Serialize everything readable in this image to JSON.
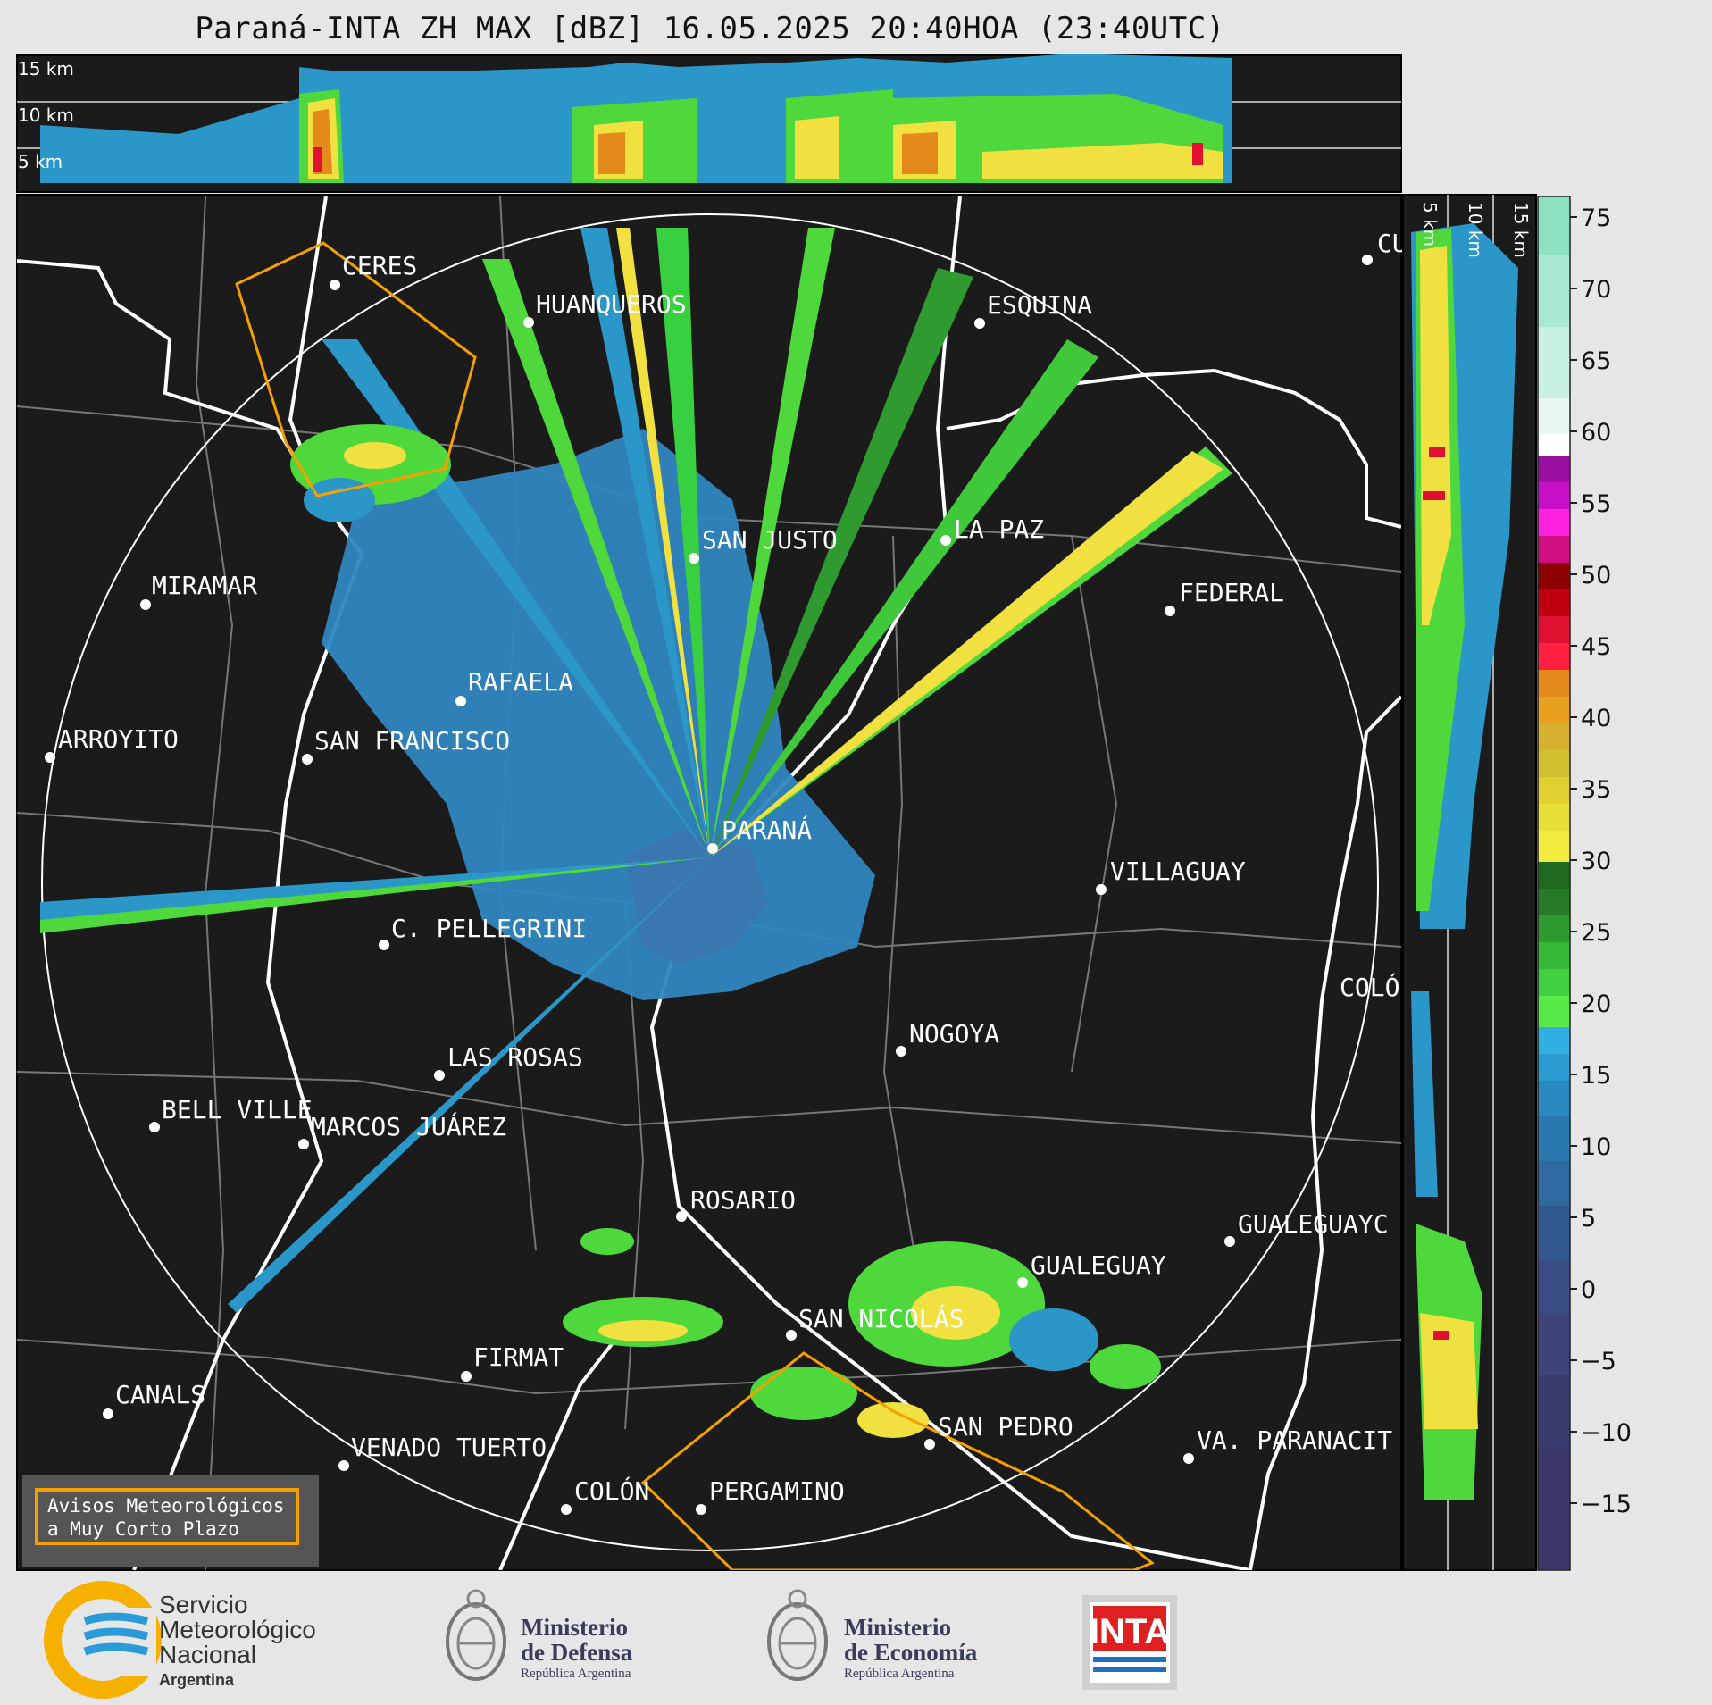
{
  "title": "Paraná-INTA ZH MAX [dBZ] 16.05.2025 20:40HOA (23:40UTC)",
  "top_profile": {
    "height_labels": [
      "15 km",
      "10 km",
      "5 km"
    ]
  },
  "side_profile": {
    "height_labels": [
      "5 km",
      "10 km",
      "15 km"
    ]
  },
  "colorbar": {
    "ticks": [
      "75",
      "70",
      "65",
      "60",
      "55",
      "50",
      "45",
      "40",
      "35",
      "30",
      "25",
      "20",
      "15",
      "10",
      "5",
      "0",
      "−5",
      "−10",
      "−15"
    ]
  },
  "cities": [
    {
      "name": "CERES"
    },
    {
      "name": "HUANQUEROS"
    },
    {
      "name": "ESQUINA"
    },
    {
      "name": "CU"
    },
    {
      "name": "SAN JUSTO"
    },
    {
      "name": "LA PAZ"
    },
    {
      "name": "MIRAMAR"
    },
    {
      "name": "FEDERAL"
    },
    {
      "name": "RAFAELA"
    },
    {
      "name": "ARROYITO"
    },
    {
      "name": "SAN FRANCISCO"
    },
    {
      "name": "PARANÁ"
    },
    {
      "name": "VILLAGUAY"
    },
    {
      "name": "C. PELLEGRINI"
    },
    {
      "name": "COLÓ"
    },
    {
      "name": "NOGOYA"
    },
    {
      "name": "LAS ROSAS"
    },
    {
      "name": "BELL VILLE"
    },
    {
      "name": "MARCOS JUÁREZ"
    },
    {
      "name": "ROSARIO"
    },
    {
      "name": "GUALEGUAYC"
    },
    {
      "name": "GUALEGUAY"
    },
    {
      "name": "SAN NICOLÁS"
    },
    {
      "name": "FIRMAT"
    },
    {
      "name": "CANALS"
    },
    {
      "name": "SAN PEDRO"
    },
    {
      "name": "VENADO TUERTO"
    },
    {
      "name": "VA. PARANACIT"
    },
    {
      "name": "COLÓN"
    },
    {
      "name": "PERGAMINO"
    }
  ],
  "warning_box": {
    "line1": "Avisos Meteorológicos",
    "line2": "a Muy Corto Plazo"
  },
  "logos": {
    "smn": {
      "line1": "Servicio",
      "line2": "Meteorológico",
      "line3": "Nacional",
      "line4": "Argentina"
    },
    "defensa": {
      "line1": "Ministerio",
      "line2": "de Defensa",
      "line3": "República Argentina"
    },
    "economia": {
      "line1": "Ministerio",
      "line2": "de Economía",
      "line3": "República Argentina"
    },
    "inta": {
      "text": "INTA"
    }
  },
  "colors": {
    "map_bg": "#1b1b1b",
    "warning": "#f5a000",
    "border": "#ffffff"
  }
}
